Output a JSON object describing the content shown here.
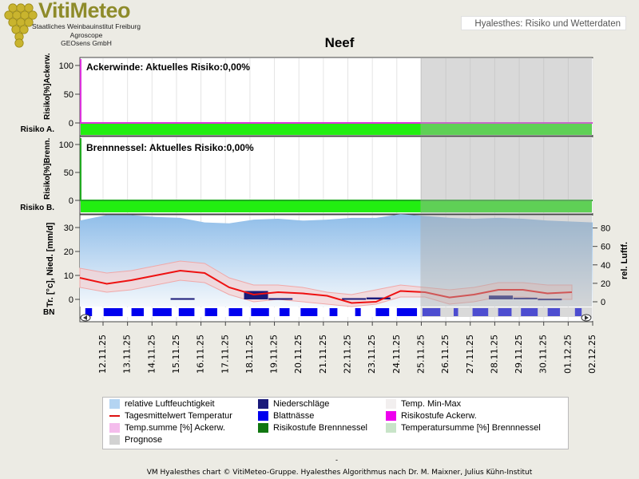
{
  "logo": {
    "title": "VitiMeteo",
    "lines": [
      "Staatliches Weinbauinstitut Freiburg",
      "Agroscope",
      "GEOsens GmbH"
    ]
  },
  "header_box": "Hyalesthes: Risiko und Wetterdaten",
  "chart_title": "Neef",
  "panels": {
    "ackerwinde": {
      "label": "Ackerwinde: Aktuelles Risiko:0,00%",
      "ylabel": "Risiko[%]Ackerw.",
      "stripe_label": "Risiko A.",
      "ticks": [
        "100",
        "50",
        "0"
      ]
    },
    "brennnessel": {
      "label": "Brennnessel: Aktuelles Risiko:0,00%",
      "ylabel": "Risiko[%]Brenn.",
      "stripe_label": "Risiko B.",
      "ticks": [
        "100",
        "50",
        "0"
      ]
    },
    "weather": {
      "ylabel_left": "Tr. [°c], Nied. [mm/d]",
      "ylabel_right": "rel. Luftf.",
      "ticks_left": [
        "30",
        "20",
        "10",
        "0"
      ],
      "ticks_right": [
        "80",
        "60",
        "40",
        "20",
        "0"
      ],
      "bn_label": "BN"
    }
  },
  "chart_data": {
    "type": "line",
    "x": [
      "12.11.25",
      "13.11.25",
      "14.11.25",
      "15.11.25",
      "16.11.25",
      "17.11.25",
      "18.11.25",
      "19.11.25",
      "20.11.25",
      "21.11.25",
      "22.11.25",
      "23.11.25",
      "24.11.25",
      "25.11.25",
      "26.11.25",
      "27.11.25",
      "28.11.25",
      "29.11.25",
      "30.11.25",
      "01.12.25",
      "02.12.25"
    ],
    "prognose_from": "25.11.25",
    "series": [
      {
        "name": "Tagesmittelwert Temperatur",
        "color": "#ee1111",
        "values": [
          9,
          6.5,
          8,
          10,
          12,
          11,
          5,
          2,
          3,
          2.5,
          1.5,
          -1.5,
          -1,
          3.5,
          3,
          0.8,
          2,
          4,
          4,
          2.5,
          3
        ]
      },
      {
        "name": "Temp. Min-Max (max)",
        "color": "#f6bcbc",
        "values": [
          13,
          11,
          12,
          14,
          16,
          15,
          9,
          6,
          6,
          5,
          3,
          2,
          4,
          6,
          5,
          4,
          5,
          7,
          7,
          6,
          6
        ]
      },
      {
        "name": "Temp. Min-Max (min)",
        "color": "#f6bcbc",
        "values": [
          5,
          3,
          4,
          6,
          8,
          7,
          2,
          -1,
          0,
          -1,
          -2,
          -3,
          -2,
          1,
          1,
          -2,
          -1,
          1,
          1,
          0,
          0
        ]
      },
      {
        "name": "relative Luftfeuchtigkeit",
        "color": "#9cc5ee",
        "values": [
          88,
          94,
          94,
          92,
          91,
          86,
          85,
          89,
          90,
          88,
          89,
          91,
          91,
          95,
          93,
          91,
          90,
          91,
          90,
          88,
          86
        ]
      },
      {
        "name": "Niederschläge",
        "color": "#1a1a7a",
        "values": [
          0,
          0,
          0,
          0,
          0.5,
          0,
          0,
          3.5,
          0.5,
          0,
          0,
          0.5,
          0.8,
          0,
          0,
          0,
          0,
          1.6,
          0.7,
          0.3,
          0
        ]
      }
    ],
    "risk": {
      "ackerwinde": 0,
      "brennnessel": 0
    },
    "blattnaesse_fraction": [
      0.3,
      0.85,
      0.55,
      0.85,
      0.7,
      0.55,
      0.6,
      0.8,
      0.45,
      0.75,
      0.35,
      0.25,
      0.6,
      0.9,
      0.8,
      0.2,
      0.7,
      0.6,
      0.75,
      0.55,
      0.3
    ],
    "ylim_temp": [
      -3,
      35
    ],
    "ylim_humidity": [
      0,
      90
    ],
    "ylim_risk": [
      0,
      100
    ]
  },
  "legend": [
    {
      "label": "relative Luftfeuchtigkeit",
      "color": "#b4d4f2",
      "kind": "box"
    },
    {
      "label": "Niederschläge",
      "color": "#1a1a7a",
      "kind": "box"
    },
    {
      "label": "Temp. Min-Max",
      "color": "#f2efef",
      "kind": "box"
    },
    {
      "label": "Tagesmittelwert Temperatur",
      "color": "#dd1111",
      "kind": "line"
    },
    {
      "label": "Blattnässe",
      "color": "#0000ee",
      "kind": "box"
    },
    {
      "label": "Risikostufe Ackerw.",
      "color": "#ee00ee",
      "kind": "box"
    },
    {
      "label": "Temp.summe [%] Ackerw.",
      "color": "#f4bcec",
      "kind": "box"
    },
    {
      "label": "Risikostufe Brennnessel",
      "color": "#117711",
      "kind": "box"
    },
    {
      "label": "Temperatursumme [%] Brennnessel",
      "color": "#c8e4c8",
      "kind": "box"
    },
    {
      "label": "Prognose",
      "color": "#d2d2d2",
      "kind": "box"
    }
  ],
  "footer_dash": "-",
  "footer": "VM Hyalesthes chart © VitiMeteo-Gruppe. Hyalesthes Algorithmus nach Dr. M. Maixner, Julius Kühn-Institut"
}
